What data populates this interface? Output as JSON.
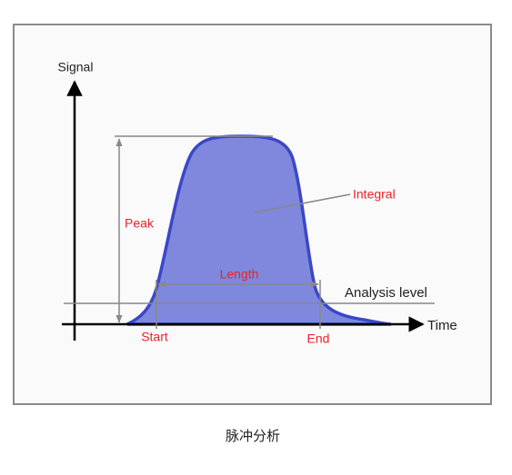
{
  "diagram": {
    "axis_labels": {
      "y": "Signal",
      "x": "Time"
    },
    "annotations": {
      "peak": "Peak",
      "integral": "Integral",
      "length": "Length",
      "analysis_level": "Analysis level",
      "start": "Start",
      "end": "End"
    }
  },
  "caption": "脉冲分析"
}
